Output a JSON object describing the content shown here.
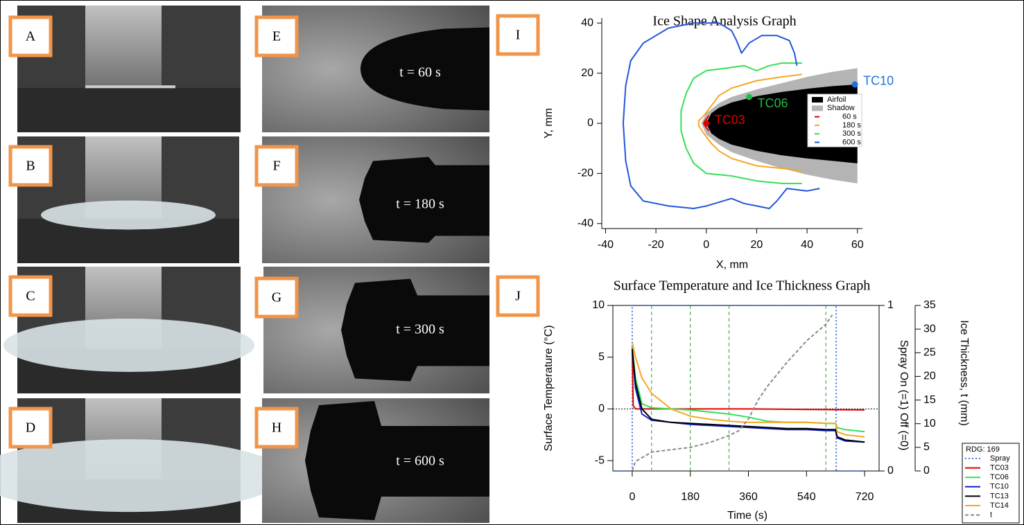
{
  "panels": [
    {
      "label": "A"
    },
    {
      "label": "B"
    },
    {
      "label": "C"
    },
    {
      "label": "D"
    },
    {
      "label": "E",
      "caption": "t = 60 s"
    },
    {
      "label": "F",
      "caption": "t = 180 s"
    },
    {
      "label": "G",
      "caption": "t = 300 s"
    },
    {
      "label": "H",
      "caption": "t = 600 s"
    },
    {
      "label": "I"
    },
    {
      "label": "J"
    }
  ],
  "chart_data": [
    {
      "type": "contour",
      "title": "Ice Shape Analysis Graph",
      "x_label": "X, mm",
      "y_label": "Y, mm",
      "xlim": [
        -41.5,
        62
      ],
      "ylim": [
        -42,
        42
      ],
      "xticks": [
        -40,
        -20,
        0,
        20,
        40,
        60
      ],
      "yticks": [
        -40,
        -20,
        0,
        20,
        40
      ],
      "legend": "right",
      "series": [
        {
          "name": "Airfoil",
          "color": "#000000",
          "fill": true,
          "x": [
            60,
            50,
            40,
            30,
            20,
            10,
            5,
            2,
            0,
            2,
            5,
            10,
            20,
            30,
            40,
            50,
            60
          ],
          "y": [
            15.5,
            14.8,
            13.8,
            12.5,
            10.8,
            8.3,
            6.2,
            4,
            0,
            -4,
            -6.2,
            -8.5,
            -11,
            -12.8,
            -14,
            -15,
            -16
          ]
        },
        {
          "name": "Shadow",
          "color": "#b4b4b4",
          "fill": true,
          "x": [
            60,
            50,
            40,
            30,
            20,
            10,
            5,
            0,
            -2,
            0,
            5,
            10,
            20,
            30,
            40,
            50,
            60
          ],
          "y": [
            22,
            20.5,
            18.5,
            16,
            13.5,
            10.5,
            8,
            4,
            0,
            -4.5,
            -8.5,
            -11.5,
            -15,
            -18,
            -20.5,
            -22.5,
            -24
          ]
        },
        {
          "name": "60 s",
          "color": "#e00000",
          "fill": false,
          "x": [
            1,
            -0.5,
            -1,
            -0.5,
            1
          ],
          "y": [
            3,
            1,
            0,
            -1,
            -3
          ]
        },
        {
          "name": "180 s",
          "color": "#f5a623",
          "fill": false,
          "x": [
            38,
            30,
            20,
            10,
            5,
            2,
            -1,
            -3,
            -3,
            -1,
            2,
            5,
            10,
            20,
            30,
            38
          ],
          "y": [
            19.5,
            18.5,
            17,
            14,
            11,
            7,
            3,
            1,
            -1,
            -4,
            -8,
            -11,
            -14,
            -17,
            -18,
            -19
          ]
        },
        {
          "name": "300 s",
          "color": "#33e055",
          "fill": false,
          "x": [
            38,
            30,
            25,
            20,
            15,
            8,
            0,
            -5,
            -8,
            -10,
            -10,
            -8,
            -5,
            0,
            10,
            20,
            30,
            38
          ],
          "y": [
            24,
            24,
            23,
            21,
            23,
            22,
            21,
            18,
            12,
            5,
            -3,
            -10,
            -16,
            -20,
            -21,
            -23,
            -24,
            -24
          ]
        },
        {
          "name": "600 s",
          "color": "#2255dd",
          "fill": false,
          "x": [
            36,
            35,
            33,
            28,
            22,
            17,
            14,
            12,
            10,
            5,
            -5,
            -15,
            -25,
            -30,
            -32,
            -33,
            -32,
            -30,
            -25,
            -15,
            -5,
            0,
            10,
            15,
            20,
            25,
            28,
            32,
            40,
            45
          ],
          "y": [
            23,
            28,
            33,
            35,
            35,
            32,
            28,
            33,
            37,
            40,
            40,
            38,
            32,
            25,
            15,
            0,
            -15,
            -25,
            -31,
            -33,
            -34,
            -33,
            -30,
            -32,
            -33,
            -34,
            -31,
            -26,
            -27,
            -26
          ]
        }
      ],
      "points": [
        {
          "name": "TC03",
          "x": 0,
          "y": 0,
          "color": "#e00000"
        },
        {
          "name": "TC06",
          "x": 17,
          "y": 10.5,
          "color": "#22bb44"
        },
        {
          "name": "TC10",
          "x": 59,
          "y": 15.5,
          "color": "#1e73d8"
        }
      ]
    },
    {
      "type": "line",
      "title": "Surface Temperature and Ice Thickness Graph",
      "x_label": "Time (s)",
      "y_label": "Surface Temperature (°C)",
      "y2_label": "Spray On (=1) Off (=0)",
      "y3_label": "Ice Thickness, t (mm)",
      "xlim": [
        -60,
        765
      ],
      "ylim": [
        -6,
        10
      ],
      "y2lim": [
        0,
        1
      ],
      "y3lim": [
        0,
        35
      ],
      "xticks": [
        0,
        180,
        360,
        540,
        720
      ],
      "yticks": [
        -5,
        0,
        5,
        10
      ],
      "y2ticks": [
        0,
        1
      ],
      "y3ticks": [
        0,
        5,
        10,
        15,
        20,
        25,
        30,
        35
      ],
      "legend_title": "RDG: 169",
      "legend": "lower right",
      "zero_line": true,
      "event_lines": [
        60,
        180,
        300,
        600
      ],
      "event_color": "#2a9a2a",
      "series": [
        {
          "name": "Spray",
          "color": "#4477dd",
          "dash": "dotted",
          "axis": "y2",
          "x": [
            -55,
            0,
            0,
            632,
            632,
            720
          ],
          "values": [
            0,
            0,
            1,
            1,
            0,
            0
          ]
        },
        {
          "name": "TC03",
          "color": "#e00000",
          "dash": "solid",
          "axis": "y",
          "x": [
            0,
            3,
            10,
            360,
            720
          ],
          "values": [
            6,
            0.3,
            0,
            0,
            -0.1
          ]
        },
        {
          "name": "TC06",
          "color": "#33e055",
          "dash": "solid",
          "axis": "y",
          "x": [
            0,
            10,
            30,
            60,
            120,
            180,
            240,
            300,
            360,
            420,
            480,
            540,
            600,
            630,
            635,
            660,
            720
          ],
          "values": [
            6,
            3,
            0.5,
            0.1,
            0,
            -0.1,
            -0.3,
            -0.5,
            -0.8,
            -1.2,
            -1.3,
            -1.3,
            -1.4,
            -1.4,
            -1.8,
            -2,
            -2.2
          ]
        },
        {
          "name": "TC10",
          "color": "#1020c8",
          "dash": "solid",
          "axis": "y",
          "x": [
            0,
            10,
            30,
            60,
            120,
            180,
            240,
            300,
            360,
            420,
            480,
            540,
            600,
            630,
            635,
            660,
            720
          ],
          "values": [
            5.6,
            2,
            -0.5,
            -1.1,
            -1.3,
            -1.5,
            -1.6,
            -1.7,
            -1.8,
            -1.9,
            -2,
            -2,
            -2.1,
            -2.1,
            -2.8,
            -3.1,
            -3.2
          ]
        },
        {
          "name": "TC13",
          "color": "#000000",
          "dash": "solid",
          "axis": "y",
          "x": [
            0,
            10,
            30,
            60,
            120,
            180,
            240,
            300,
            360,
            420,
            480,
            540,
            600,
            630,
            635,
            660,
            720
          ],
          "values": [
            5.8,
            2.5,
            0,
            -1,
            -1.3,
            -1.4,
            -1.5,
            -1.6,
            -1.7,
            -1.8,
            -1.9,
            -1.9,
            -2,
            -2,
            -2.7,
            -3,
            -3.2
          ]
        },
        {
          "name": "TC14",
          "color": "#f5a623",
          "dash": "solid",
          "axis": "y",
          "x": [
            0,
            10,
            30,
            60,
            120,
            180,
            240,
            300,
            360,
            420,
            480,
            540,
            600,
            630,
            635,
            660,
            720
          ],
          "values": [
            6.4,
            5,
            3,
            1.5,
            0,
            -0.7,
            -1,
            -1.2,
            -1.3,
            -1.3,
            -1.3,
            -1.3,
            -1.4,
            -1.4,
            -2.2,
            -2.5,
            -2.7
          ]
        },
        {
          "name": "t",
          "color": "#888888",
          "dash": "dashed",
          "axis": "y3",
          "x": [
            0,
            10,
            60,
            120,
            180,
            240,
            300,
            330,
            360,
            390,
            420,
            480,
            540,
            600,
            620
          ],
          "values": [
            0,
            2,
            4,
            4.5,
            5,
            6,
            7.5,
            8.5,
            11,
            15,
            18,
            23,
            27.5,
            31,
            33
          ]
        }
      ]
    }
  ]
}
